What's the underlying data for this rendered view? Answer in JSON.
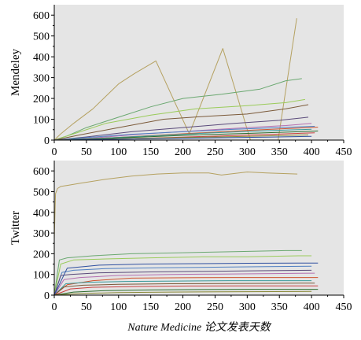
{
  "chart_data": [
    {
      "type": "line",
      "ylabel": "Mendeley",
      "xlabel": "",
      "xlim": [
        0,
        450
      ],
      "ylim": [
        0,
        650
      ],
      "xticks": [
        0,
        50,
        100,
        150,
        200,
        250,
        300,
        350,
        400,
        450
      ],
      "yticks": [
        0,
        100,
        200,
        300,
        400,
        500,
        600
      ],
      "background": "#e5e5e5",
      "grid": false,
      "series": [
        {
          "color": "#b5a160",
          "x": [
            0,
            10,
            30,
            60,
            100,
            125,
            158,
            210,
            262,
            305,
            348,
            377
          ],
          "y": [
            0,
            30,
            80,
            150,
            270,
            320,
            380,
            30,
            440,
            0,
            0,
            585
          ]
        },
        {
          "color": "#6aa870",
          "x": [
            0,
            20,
            50,
            100,
            150,
            200,
            260,
            320,
            360,
            385
          ],
          "y": [
            0,
            20,
            60,
            110,
            160,
            200,
            220,
            245,
            285,
            295
          ]
        },
        {
          "color": "#9acb5a",
          "x": [
            0,
            30,
            80,
            150,
            220,
            300,
            360,
            390
          ],
          "y": [
            0,
            30,
            80,
            120,
            150,
            165,
            180,
            195
          ]
        },
        {
          "color": "#7b5a3a",
          "x": [
            0,
            40,
            100,
            170,
            240,
            300,
            360,
            395
          ],
          "y": [
            0,
            25,
            60,
            100,
            115,
            125,
            150,
            170
          ]
        },
        {
          "color": "#5a4a7a",
          "x": [
            0,
            50,
            120,
            200,
            280,
            350,
            395
          ],
          "y": [
            0,
            15,
            40,
            60,
            80,
            95,
            110
          ]
        },
        {
          "color": "#b46fb0",
          "x": [
            0,
            60,
            140,
            220,
            300,
            360,
            400
          ],
          "y": [
            0,
            10,
            30,
            45,
            60,
            70,
            80
          ]
        },
        {
          "color": "#4f7fc2",
          "x": [
            0,
            50,
            120,
            200,
            280,
            350,
            405
          ],
          "y": [
            0,
            12,
            28,
            40,
            52,
            60,
            66
          ]
        },
        {
          "color": "#d0552f",
          "x": [
            0,
            70,
            150,
            230,
            310,
            380,
            410
          ],
          "y": [
            0,
            8,
            22,
            35,
            48,
            58,
            62
          ]
        },
        {
          "color": "#3a9a9a",
          "x": [
            0,
            80,
            160,
            240,
            320,
            400
          ],
          "y": [
            0,
            10,
            22,
            34,
            44,
            52
          ]
        },
        {
          "color": "#2c6b2c",
          "x": [
            0,
            60,
            140,
            220,
            300,
            380,
            410
          ],
          "y": [
            0,
            6,
            15,
            25,
            32,
            40,
            44
          ]
        },
        {
          "color": "#c94040",
          "x": [
            0,
            90,
            180,
            260,
            340,
            405
          ],
          "y": [
            0,
            5,
            12,
            20,
            28,
            35
          ]
        },
        {
          "color": "#8a8a3a",
          "x": [
            0,
            100,
            200,
            300,
            395
          ],
          "y": [
            0,
            6,
            12,
            18,
            25
          ]
        },
        {
          "color": "#3050a0",
          "x": [
            0,
            110,
            220,
            330,
            400
          ],
          "y": [
            0,
            5,
            10,
            14,
            18
          ]
        }
      ]
    },
    {
      "type": "line",
      "ylabel": "Twitter",
      "xlabel": "Nature Medicine 论文发表天数",
      "xlim": [
        0,
        450
      ],
      "ylim": [
        0,
        650
      ],
      "xticks": [
        0,
        50,
        100,
        150,
        200,
        250,
        300,
        350,
        400,
        450
      ],
      "yticks": [
        0,
        100,
        200,
        300,
        400,
        500,
        600
      ],
      "background": "#e5e5e5",
      "grid": false,
      "series": [
        {
          "color": "#b5a160",
          "x": [
            0,
            2,
            5,
            10,
            20,
            40,
            80,
            120,
            160,
            200,
            240,
            260,
            300,
            330,
            378
          ],
          "y": [
            270,
            490,
            515,
            525,
            530,
            540,
            560,
            575,
            585,
            590,
            590,
            580,
            595,
            590,
            585
          ]
        },
        {
          "color": "#6aa870",
          "x": [
            0,
            8,
            20,
            60,
            120,
            200,
            280,
            360,
            385
          ],
          "y": [
            0,
            170,
            180,
            190,
            200,
            205,
            210,
            215,
            215
          ]
        },
        {
          "color": "#9acb5a",
          "x": [
            0,
            10,
            30,
            80,
            150,
            230,
            300,
            380,
            400
          ],
          "y": [
            0,
            150,
            170,
            175,
            180,
            185,
            185,
            190,
            190
          ]
        },
        {
          "color": "#4f7fc2",
          "x": [
            0,
            12,
            30,
            80,
            160,
            250,
            330,
            400
          ],
          "y": [
            0,
            110,
            120,
            128,
            132,
            135,
            138,
            140
          ]
        },
        {
          "color": "#5a4a7a",
          "x": [
            0,
            10,
            25,
            70,
            150,
            240,
            320,
            400
          ],
          "y": [
            0,
            95,
            100,
            108,
            112,
            115,
            118,
            120
          ]
        },
        {
          "color": "#b46fb0",
          "x": [
            0,
            15,
            40,
            100,
            180,
            260,
            340,
            405
          ],
          "y": [
            0,
            75,
            85,
            95,
            100,
            102,
            104,
            106
          ]
        },
        {
          "color": "#d0552f",
          "x": [
            0,
            20,
            60,
            120,
            200,
            280,
            360,
            410
          ],
          "y": [
            0,
            50,
            70,
            82,
            84,
            85,
            85,
            85
          ]
        },
        {
          "color": "#3a9a9a",
          "x": [
            0,
            18,
            50,
            110,
            190,
            270,
            350,
            400
          ],
          "y": [
            0,
            55,
            62,
            66,
            68,
            70,
            70,
            70
          ]
        },
        {
          "color": "#7b5a3a",
          "x": [
            0,
            15,
            45,
            100,
            180,
            260,
            340,
            405
          ],
          "y": [
            0,
            40,
            48,
            52,
            55,
            56,
            57,
            58
          ]
        },
        {
          "color": "#c94040",
          "x": [
            0,
            25,
            60,
            130,
            210,
            290,
            370,
            410
          ],
          "y": [
            0,
            30,
            38,
            42,
            44,
            45,
            45,
            45
          ]
        },
        {
          "color": "#2c6b2c",
          "x": [
            0,
            30,
            80,
            150,
            230,
            310,
            390,
            410
          ],
          "y": [
            0,
            15,
            22,
            25,
            27,
            28,
            28,
            28
          ]
        },
        {
          "color": "#8a8a3a",
          "x": [
            0,
            40,
            100,
            180,
            260,
            340,
            400
          ],
          "y": [
            0,
            8,
            12,
            15,
            16,
            17,
            18
          ]
        },
        {
          "color": "#3050a0",
          "x": [
            0,
            20,
            70,
            140,
            220,
            300,
            380,
            410
          ],
          "y": [
            0,
            130,
            145,
            150,
            152,
            154,
            155,
            155
          ]
        }
      ]
    }
  ]
}
